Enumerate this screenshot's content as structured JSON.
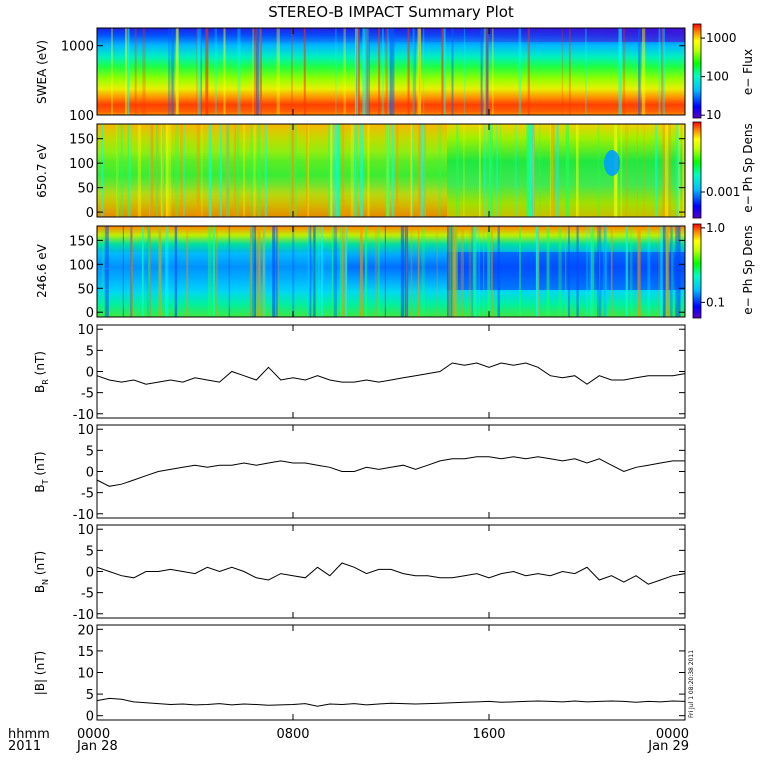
{
  "title": "STEREO-B IMPACT Summary Plot",
  "time_axis": {
    "corner_top": "hhmm",
    "corner_bottom": "2011",
    "ticks": [
      {
        "label": "0000",
        "date": "Jan 28",
        "hours": 0
      },
      {
        "label": "0800",
        "date": "",
        "hours": 8
      },
      {
        "label": "1600",
        "date": "",
        "hours": 16
      },
      {
        "label": "0000",
        "date": "Jan 29",
        "hours": 24
      }
    ],
    "range_hours": [
      0,
      24
    ]
  },
  "stamp": "Fri Jul  1 08:20:38 2011",
  "spectrograms": [
    {
      "id": "swea",
      "ylabel": "SWEA (eV)",
      "yscale": "log",
      "ylim": [
        100,
        1800
      ],
      "yticks": [
        {
          "v": 1000,
          "label": "1000"
        },
        {
          "v": 100,
          "label": "100"
        }
      ],
      "colorbar": {
        "label": "e− Flux",
        "scale": "log",
        "ticks": [
          {
            "label": "1000",
            "frac": 0.85
          },
          {
            "label": "100",
            "frac": 0.44
          },
          {
            "label": "10",
            "frac": 0.03
          }
        ]
      }
    },
    {
      "id": "pad650",
      "ylabel": "650.7 eV",
      "yscale": "linear",
      "ylim": [
        -10,
        180
      ],
      "yticks": [
        {
          "v": 150,
          "label": "150"
        },
        {
          "v": 100,
          "label": "100"
        },
        {
          "v": 50,
          "label": "50"
        },
        {
          "v": 0,
          "label": "0"
        }
      ],
      "colorbar": {
        "label": "e− Ph Sp Dens",
        "scale": "log",
        "ticks": [
          {
            "label": "0.001",
            "frac": 0.28
          }
        ]
      }
    },
    {
      "id": "pad246",
      "ylabel": "246.6 eV",
      "yscale": "linear",
      "ylim": [
        -10,
        180
      ],
      "yticks": [
        {
          "v": 150,
          "label": "150"
        },
        {
          "v": 100,
          "label": "100"
        },
        {
          "v": 50,
          "label": "50"
        },
        {
          "v": 0,
          "label": "0"
        }
      ],
      "colorbar": {
        "label": "e− Ph Sp Dens",
        "scale": "log",
        "ticks": [
          {
            "label": "1.0",
            "frac": 0.94
          },
          {
            "label": "0.1",
            "frac": 0.18
          }
        ]
      }
    }
  ],
  "chart_data": [
    {
      "type": "line",
      "id": "br",
      "ylabel": "B_R (nT)",
      "ylim": [
        -11,
        11
      ],
      "yticks": [
        10,
        5,
        0,
        -5,
        -10
      ],
      "x_hours": [
        0,
        0.5,
        1,
        1.5,
        2,
        2.5,
        3,
        3.5,
        4,
        4.5,
        5,
        5.5,
        6,
        6.5,
        7,
        7.5,
        8,
        8.5,
        9,
        9.5,
        10,
        10.5,
        11,
        11.5,
        12,
        12.5,
        13,
        13.5,
        14,
        14.5,
        15,
        15.5,
        16,
        16.5,
        17,
        17.5,
        18,
        18.5,
        19,
        19.5,
        20,
        20.5,
        21,
        21.5,
        22,
        22.5,
        23,
        23.5,
        24
      ],
      "values": [
        -1,
        -2,
        -2.5,
        -2,
        -3,
        -2.5,
        -2,
        -2.5,
        -1.5,
        -2,
        -2.5,
        0,
        -1,
        -2,
        1,
        -2,
        -1.5,
        -2,
        -1,
        -2,
        -2.5,
        -2.5,
        -2,
        -2.5,
        -2,
        -1.5,
        -1,
        -0.5,
        0,
        2,
        1.5,
        2,
        1,
        2,
        1.5,
        2,
        1,
        -1,
        -1.5,
        -1,
        -3,
        -1,
        -2,
        -2,
        -1.5,
        -1,
        -1,
        -1,
        -0.5
      ]
    },
    {
      "type": "line",
      "id": "bt",
      "ylabel": "B_T (nT)",
      "ylim": [
        -11,
        11
      ],
      "yticks": [
        10,
        5,
        0,
        -5,
        -10
      ],
      "x_hours": [
        0,
        0.5,
        1,
        1.5,
        2,
        2.5,
        3,
        3.5,
        4,
        4.5,
        5,
        5.5,
        6,
        6.5,
        7,
        7.5,
        8,
        8.5,
        9,
        9.5,
        10,
        10.5,
        11,
        11.5,
        12,
        12.5,
        13,
        13.5,
        14,
        14.5,
        15,
        15.5,
        16,
        16.5,
        17,
        17.5,
        18,
        18.5,
        19,
        19.5,
        20,
        20.5,
        21,
        21.5,
        22,
        22.5,
        23,
        23.5,
        24
      ],
      "values": [
        -2,
        -3.5,
        -3,
        -2,
        -1,
        0,
        0.5,
        1,
        1.5,
        1,
        1.5,
        1.5,
        2,
        1.5,
        2,
        2.5,
        2,
        2,
        1.5,
        1,
        0,
        0,
        1,
        0.5,
        1,
        1.5,
        0.5,
        1.5,
        2.5,
        3,
        3,
        3.5,
        3.5,
        3,
        3.5,
        3,
        3.5,
        3,
        2.5,
        3,
        2,
        3,
        1.5,
        0,
        1,
        1.5,
        2,
        2.5,
        2.5
      ]
    },
    {
      "type": "line",
      "id": "bn",
      "ylabel": "B_N (nT)",
      "ylim": [
        -11,
        11
      ],
      "yticks": [
        10,
        5,
        0,
        -5,
        -10
      ],
      "x_hours": [
        0,
        0.5,
        1,
        1.5,
        2,
        2.5,
        3,
        3.5,
        4,
        4.5,
        5,
        5.5,
        6,
        6.5,
        7,
        7.5,
        8,
        8.5,
        9,
        9.5,
        10,
        10.5,
        11,
        11.5,
        12,
        12.5,
        13,
        13.5,
        14,
        14.5,
        15,
        15.5,
        16,
        16.5,
        17,
        17.5,
        18,
        18.5,
        19,
        19.5,
        20,
        20.5,
        21,
        21.5,
        22,
        22.5,
        23,
        23.5,
        24
      ],
      "values": [
        1,
        0,
        -1,
        -1.5,
        0,
        0,
        0.5,
        0,
        -0.5,
        1,
        0,
        1,
        0,
        -1.5,
        -2,
        -0.5,
        -1,
        -1.5,
        1,
        -1,
        2,
        1,
        -0.5,
        0.5,
        0.5,
        -0.5,
        -1,
        -1,
        -1.5,
        -1.5,
        -1,
        -0.5,
        -1.5,
        -0.5,
        0,
        -1,
        -0.5,
        -1,
        0,
        -0.5,
        1,
        -2,
        -1,
        -2.5,
        -1,
        -3,
        -2,
        -1,
        -0.5
      ]
    },
    {
      "type": "line",
      "id": "bmag",
      "ylabel": "|B| (nT)",
      "ylim": [
        -1,
        21
      ],
      "yticks": [
        20,
        15,
        10,
        5,
        0
      ],
      "x_hours": [
        0,
        0.5,
        1,
        1.5,
        2,
        2.5,
        3,
        3.5,
        4,
        4.5,
        5,
        5.5,
        6,
        6.5,
        7,
        7.5,
        8,
        8.5,
        9,
        9.5,
        10,
        10.5,
        11,
        11.5,
        12,
        12.5,
        13,
        13.5,
        14,
        14.5,
        15,
        15.5,
        16,
        16.5,
        17,
        17.5,
        18,
        18.5,
        19,
        19.5,
        20,
        20.5,
        21,
        21.5,
        22,
        22.5,
        23,
        23.5,
        24
      ],
      "values": [
        3.5,
        4,
        3.8,
        3.2,
        3,
        2.8,
        2.6,
        2.7,
        2.5,
        2.6,
        2.8,
        2.5,
        2.7,
        2.6,
        2.4,
        2.5,
        2.6,
        2.8,
        2.2,
        2.7,
        2.6,
        2.8,
        2.5,
        2.7,
        2.9,
        2.8,
        2.7,
        2.8,
        2.9,
        3,
        3.1,
        3.2,
        3.3,
        3.1,
        3.2,
        3.3,
        3.4,
        3.3,
        3.2,
        3.4,
        3.2,
        3.3,
        3.4,
        3.3,
        3.1,
        3.3,
        3.2,
        3.4,
        3.3
      ]
    }
  ]
}
